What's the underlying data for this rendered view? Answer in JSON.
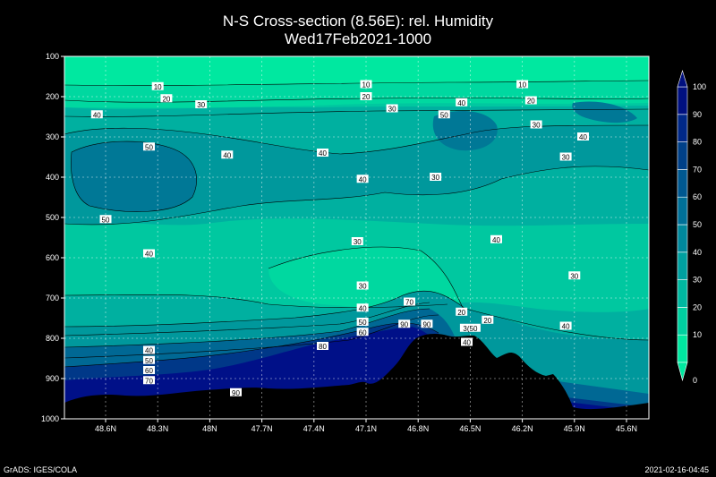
{
  "chart_data": {
    "type": "heatmap",
    "title": "N-S Cross-section (8.56E): rel. Humidity",
    "subtitle": "Wed17Feb2021-1000",
    "x_ticks": [
      "48.6N",
      "48.3N",
      "48N",
      "47.7N",
      "47.4N",
      "47.1N",
      "46.8N",
      "46.5N",
      "46.2N",
      "45.9N",
      "45.6N"
    ],
    "y_ticks": [
      "100",
      "200",
      "300",
      "400",
      "500",
      "600",
      "700",
      "800",
      "900",
      "1000"
    ],
    "ylim": [
      100,
      1000
    ],
    "grid": true,
    "colorbar": {
      "labels": [
        "0",
        "10",
        "20",
        "30",
        "40",
        "50",
        "60",
        "70",
        "80",
        "90",
        "100"
      ],
      "colors": [
        "#00e8a0",
        "#00d0a0",
        "#00b8a0",
        "#00a0a0",
        "#00889c",
        "#007098",
        "#005890",
        "#004088",
        "#002888",
        "#001080"
      ]
    },
    "contour_labels": [
      {
        "text": "10",
        "lat": 48.3,
        "p": 175
      },
      {
        "text": "20",
        "lat": 48.25,
        "p": 205
      },
      {
        "text": "30",
        "lat": 48.05,
        "p": 220
      },
      {
        "text": "40",
        "lat": 48.65,
        "p": 245
      },
      {
        "text": "50",
        "lat": 48.35,
        "p": 325
      },
      {
        "text": "40",
        "lat": 47.9,
        "p": 345
      },
      {
        "text": "50",
        "lat": 48.6,
        "p": 505
      },
      {
        "text": "40",
        "lat": 48.35,
        "p": 590
      },
      {
        "text": "10",
        "lat": 47.1,
        "p": 170
      },
      {
        "text": "20",
        "lat": 47.1,
        "p": 200
      },
      {
        "text": "30",
        "lat": 46.95,
        "p": 230
      },
      {
        "text": "40",
        "lat": 47.35,
        "p": 340
      },
      {
        "text": "40",
        "lat": 47.12,
        "p": 405
      },
      {
        "text": "30",
        "lat": 46.7,
        "p": 400
      },
      {
        "text": "30",
        "lat": 47.15,
        "p": 560
      },
      {
        "text": "30",
        "lat": 47.12,
        "p": 670
      },
      {
        "text": "40",
        "lat": 47.12,
        "p": 725
      },
      {
        "text": "50",
        "lat": 47.12,
        "p": 760
      },
      {
        "text": "60",
        "lat": 47.12,
        "p": 785
      },
      {
        "text": "70",
        "lat": 46.85,
        "p": 710
      },
      {
        "text": "90",
        "lat": 46.88,
        "p": 765
      },
      {
        "text": "90",
        "lat": 46.75,
        "p": 765
      },
      {
        "text": "80",
        "lat": 47.35,
        "p": 820
      },
      {
        "text": "90",
        "lat": 47.85,
        "p": 935
      },
      {
        "text": "50",
        "lat": 46.65,
        "p": 245
      },
      {
        "text": "40",
        "lat": 46.55,
        "p": 215
      },
      {
        "text": "10",
        "lat": 46.2,
        "p": 170
      },
      {
        "text": "20",
        "lat": 46.15,
        "p": 210
      },
      {
        "text": "30",
        "lat": 46.12,
        "p": 270
      },
      {
        "text": "40",
        "lat": 45.85,
        "p": 300
      },
      {
        "text": "30",
        "lat": 45.95,
        "p": 350
      },
      {
        "text": "40",
        "lat": 46.35,
        "p": 555
      },
      {
        "text": "30",
        "lat": 45.9,
        "p": 645
      },
      {
        "text": "20",
        "lat": 46.55,
        "p": 735
      },
      {
        "text": "20",
        "lat": 46.4,
        "p": 755
      },
      {
        "text": "3(50",
        "lat": 46.5,
        "p": 775
      },
      {
        "text": "40",
        "lat": 46.52,
        "p": 810
      },
      {
        "text": "40",
        "lat": 45.95,
        "p": 770
      },
      {
        "text": "40",
        "lat": 48.35,
        "p": 830
      },
      {
        "text": "50",
        "lat": 48.35,
        "p": 855
      },
      {
        "text": "60",
        "lat": 48.35,
        "p": 880
      },
      {
        "text": "70",
        "lat": 48.35,
        "p": 905
      }
    ]
  },
  "footer": {
    "left": "GrADS: IGES/COLA",
    "right": "2021-02-16-04:45"
  }
}
